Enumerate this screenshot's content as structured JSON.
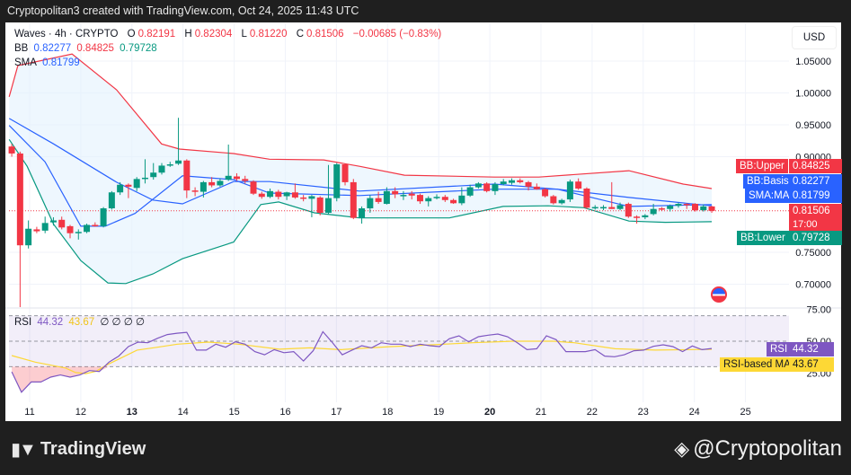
{
  "header": {
    "attribution": "Cryptopolitan3 created with TradingView.com, Oct 24, 2025 11:43 UTC"
  },
  "legend": {
    "symbol": "Waves · 4h · CRYPTO",
    "o_label": "O",
    "o": "0.82191",
    "h_label": "H",
    "h": "0.82304",
    "l_label": "L",
    "l": "0.81220",
    "c_label": "C",
    "c": "0.81506",
    "change": "−0.00685 (−0.83%)",
    "bb_label": "BB",
    "bb_basis": "0.82277",
    "bb_upper": "0.84825",
    "bb_lower": "0.79728",
    "sma_label": "SMA",
    "sma": "0.81799",
    "rsi_label": "RSI",
    "rsi": "44.32",
    "rsi_ma": "43.67",
    "rsi_extra": "∅ ∅ ∅ ∅"
  },
  "currency_button": "USD",
  "price_tags": {
    "upper_label": "BB:Upper",
    "upper": "0.84825",
    "basis_label": "BB:Basis",
    "basis": "0.82277",
    "sma_label": "SMA:MA",
    "sma": "0.81799",
    "last": "0.81506",
    "countdown": "17:00",
    "lower_label": "BB:Lower",
    "lower": "0.79728",
    "rsi_label": "RSI",
    "rsi": "44.32",
    "rsi_ma_label": "RSI-based MA",
    "rsi_ma": "43.67"
  },
  "footer": {
    "brand": "TradingView",
    "watermark": "@Cryptopolitan"
  },
  "colors": {
    "up": "#089981",
    "down": "#f23645",
    "basis": "#2962ff",
    "upper": "#f23645",
    "lower": "#089981",
    "rsi": "#7e57c2",
    "rsi_ma": "#fdd835",
    "band_fill": "#e3f2fd"
  },
  "chart_data": [
    {
      "type": "candlestick",
      "title": "Waves · 4h · CRYPTO",
      "ylabel": "USD",
      "ylim": [
        0.68,
        1.07
      ],
      "y_ticks": [
        "1.05000",
        "1.00000",
        "0.95000",
        "0.90000",
        "0.75000",
        "0.70000"
      ],
      "x_ticks": [
        "11",
        "12",
        "13",
        "14",
        "15",
        "16",
        "17",
        "18",
        "19",
        "20",
        "21",
        "22",
        "23",
        "24",
        "25"
      ],
      "x_range_days_oct": [
        10.5,
        25.8
      ],
      "grid": true,
      "candles_ohlc": [
        [
          0.916,
          0.92,
          0.9,
          0.905
        ],
        [
          0.905,
          0.908,
          0.664,
          0.761
        ],
        [
          0.761,
          0.8,
          0.756,
          0.787
        ],
        [
          0.786,
          0.79,
          0.78,
          0.783
        ],
        [
          0.784,
          0.806,
          0.78,
          0.796
        ],
        [
          0.797,
          0.805,
          0.792,
          0.8
        ],
        [
          0.801,
          0.806,
          0.786,
          0.789
        ],
        [
          0.791,
          0.793,
          0.772,
          0.78
        ],
        [
          0.78,
          0.786,
          0.77,
          0.782
        ],
        [
          0.782,
          0.795,
          0.78,
          0.793
        ],
        [
          0.793,
          0.797,
          0.79,
          0.792
        ],
        [
          0.791,
          0.821,
          0.789,
          0.819
        ],
        [
          0.819,
          0.846,
          0.817,
          0.844
        ],
        [
          0.844,
          0.86,
          0.84,
          0.856
        ],
        [
          0.856,
          0.858,
          0.835,
          0.853
        ],
        [
          0.851,
          0.868,
          0.846,
          0.865
        ],
        [
          0.866,
          0.896,
          0.858,
          0.867
        ],
        [
          0.868,
          0.89,
          0.864,
          0.875
        ],
        [
          0.875,
          0.89,
          0.872,
          0.886
        ],
        [
          0.887,
          0.892,
          0.884,
          0.888
        ],
        [
          0.889,
          0.961,
          0.887,
          0.894
        ],
        [
          0.894,
          0.896,
          0.835,
          0.847
        ],
        [
          0.847,
          0.852,
          0.838,
          0.845
        ],
        [
          0.845,
          0.862,
          0.836,
          0.86
        ],
        [
          0.86,
          0.868,
          0.852,
          0.855
        ],
        [
          0.855,
          0.866,
          0.853,
          0.862
        ],
        [
          0.864,
          0.919,
          0.862,
          0.87
        ],
        [
          0.869,
          0.874,
          0.862,
          0.865
        ],
        [
          0.865,
          0.87,
          0.858,
          0.862
        ],
        [
          0.861,
          0.863,
          0.84,
          0.842
        ],
        [
          0.842,
          0.845,
          0.834,
          0.837
        ],
        [
          0.837,
          0.85,
          0.835,
          0.846
        ],
        [
          0.845,
          0.848,
          0.833,
          0.837
        ],
        [
          0.838,
          0.845,
          0.832,
          0.844
        ],
        [
          0.844,
          0.858,
          0.834,
          0.836
        ],
        [
          0.836,
          0.84,
          0.83,
          0.835
        ],
        [
          0.834,
          0.84,
          0.805,
          0.838
        ],
        [
          0.836,
          0.838,
          0.808,
          0.812
        ],
        [
          0.812,
          0.887,
          0.81,
          0.835
        ],
        [
          0.835,
          0.89,
          0.83,
          0.888
        ],
        [
          0.888,
          0.889,
          0.855,
          0.86
        ],
        [
          0.86,
          0.865,
          0.802,
          0.804
        ],
        [
          0.804,
          0.822,
          0.795,
          0.819
        ],
        [
          0.819,
          0.84,
          0.812,
          0.835
        ],
        [
          0.835,
          0.845,
          0.826,
          0.829
        ],
        [
          0.826,
          0.852,
          0.825,
          0.846
        ],
        [
          0.846,
          0.852,
          0.835,
          0.841
        ],
        [
          0.839,
          0.846,
          0.832,
          0.84
        ],
        [
          0.842,
          0.846,
          0.833,
          0.839
        ],
        [
          0.84,
          0.842,
          0.826,
          0.83
        ],
        [
          0.83,
          0.838,
          0.822,
          0.835
        ],
        [
          0.836,
          0.841,
          0.833,
          0.837
        ],
        [
          0.837,
          0.84,
          0.829,
          0.832
        ],
        [
          0.832,
          0.834,
          0.826,
          0.827
        ],
        [
          0.827,
          0.852,
          0.824,
          0.839
        ],
        [
          0.839,
          0.856,
          0.837,
          0.852
        ],
        [
          0.852,
          0.86,
          0.85,
          0.858
        ],
        [
          0.858,
          0.86,
          0.844,
          0.846
        ],
        [
          0.846,
          0.86,
          0.84,
          0.857
        ],
        [
          0.857,
          0.865,
          0.855,
          0.861
        ],
        [
          0.859,
          0.866,
          0.856,
          0.863
        ],
        [
          0.863,
          0.866,
          0.858,
          0.86
        ],
        [
          0.86,
          0.862,
          0.847,
          0.853
        ],
        [
          0.853,
          0.858,
          0.848,
          0.849
        ],
        [
          0.849,
          0.851,
          0.836,
          0.838
        ],
        [
          0.838,
          0.84,
          0.825,
          0.827
        ],
        [
          0.827,
          0.834,
          0.825,
          0.832
        ],
        [
          0.833,
          0.864,
          0.829,
          0.861
        ],
        [
          0.861,
          0.866,
          0.848,
          0.85
        ],
        [
          0.85,
          0.852,
          0.818,
          0.82
        ],
        [
          0.82,
          0.824,
          0.817,
          0.821
        ],
        [
          0.82,
          0.824,
          0.816,
          0.821
        ],
        [
          0.821,
          0.86,
          0.818,
          0.818
        ],
        [
          0.818,
          0.828,
          0.816,
          0.824
        ],
        [
          0.826,
          0.828,
          0.804,
          0.806
        ],
        [
          0.806,
          0.808,
          0.795,
          0.805
        ],
        [
          0.805,
          0.81,
          0.802,
          0.808
        ],
        [
          0.81,
          0.826,
          0.808,
          0.818
        ],
        [
          0.819,
          0.821,
          0.815,
          0.818
        ],
        [
          0.818,
          0.825,
          0.814,
          0.823
        ],
        [
          0.823,
          0.828,
          0.82,
          0.826
        ],
        [
          0.826,
          0.827,
          0.818,
          0.825
        ],
        [
          0.826,
          0.827,
          0.814,
          0.816
        ],
        [
          0.816,
          0.825,
          0.814,
          0.822
        ],
        [
          0.822,
          0.823,
          0.812,
          0.815
        ]
      ],
      "series": [
        {
          "name": "BB:Upper",
          "points": [
            [
              10.6,
              0.994
            ],
            [
              10.77,
              1.043
            ],
            [
              11.83,
              1.061
            ],
            [
              12.7,
              1.005
            ],
            [
              13.58,
              0.92
            ],
            [
              13.93,
              0.912
            ],
            [
              14.99,
              0.905
            ],
            [
              15.69,
              0.896
            ],
            [
              16.75,
              0.895
            ],
            [
              17.45,
              0.885
            ],
            [
              18.33,
              0.871
            ],
            [
              20.09,
              0.868
            ],
            [
              20.96,
              0.868
            ],
            [
              22.72,
              0.878
            ],
            [
              23.78,
              0.857
            ],
            [
              24.34,
              0.85
            ]
          ]
        },
        {
          "name": "BB:Basis",
          "points": [
            [
              10.6,
              0.96
            ],
            [
              11.47,
              0.92
            ],
            [
              12.7,
              0.86
            ],
            [
              13.41,
              0.832
            ],
            [
              13.99,
              0.826
            ],
            [
              14.99,
              0.861
            ],
            [
              15.69,
              0.861
            ],
            [
              17.45,
              0.846
            ],
            [
              20.09,
              0.857
            ],
            [
              21.32,
              0.849
            ],
            [
              22.72,
              0.836
            ],
            [
              24.34,
              0.823
            ]
          ]
        },
        {
          "name": "SMA:MA",
          "points": [
            [
              10.6,
              0.949
            ],
            [
              11.3,
              0.892
            ],
            [
              12.0,
              0.791
            ],
            [
              12.48,
              0.791
            ],
            [
              13.06,
              0.811
            ],
            [
              13.99,
              0.87
            ],
            [
              14.99,
              0.864
            ],
            [
              15.69,
              0.843
            ],
            [
              17.45,
              0.839
            ],
            [
              20.09,
              0.849
            ],
            [
              21.32,
              0.849
            ],
            [
              22.72,
              0.822
            ],
            [
              24.34,
              0.825
            ]
          ]
        },
        {
          "name": "BB:Lower",
          "points": [
            [
              10.6,
              0.927
            ],
            [
              10.95,
              0.885
            ],
            [
              11.47,
              0.794
            ],
            [
              12.0,
              0.737
            ],
            [
              12.53,
              0.702
            ],
            [
              12.88,
              0.701
            ],
            [
              13.41,
              0.716
            ],
            [
              13.99,
              0.74
            ],
            [
              14.99,
              0.766
            ],
            [
              15.52,
              0.825
            ],
            [
              15.87,
              0.829
            ],
            [
              16.57,
              0.812
            ],
            [
              17.45,
              0.804
            ],
            [
              19.21,
              0.804
            ],
            [
              20.26,
              0.822
            ],
            [
              21.14,
              0.823
            ],
            [
              21.84,
              0.82
            ],
            [
              22.72,
              0.799
            ],
            [
              23.43,
              0.797
            ],
            [
              24.34,
              0.798
            ]
          ]
        }
      ],
      "last_price": 0.81506
    },
    {
      "type": "line",
      "title": "RSI",
      "ylim": [
        15,
        80
      ],
      "y_ticks": [
        "75.00",
        "50.00",
        "25.00"
      ],
      "bands": [
        70,
        50,
        30
      ],
      "series": [
        {
          "name": "RSI",
          "values": [
            26,
            10,
            18,
            18,
            21.8,
            23.5,
            21.8,
            23.5,
            27,
            26.3,
            33.6,
            38.3,
            45.8,
            49.3,
            48.8,
            52.3,
            55.2,
            56.3,
            57,
            43,
            43,
            47.7,
            45.3,
            49.5,
            47.7,
            41.8,
            39.4,
            43.4,
            41,
            41.8,
            34.5,
            42.5,
            57.5,
            48.8,
            39.4,
            43,
            46.5,
            44.8,
            48.8,
            47.7,
            47.7,
            45.8,
            47.7,
            46.5,
            45.8,
            51.9,
            54.2,
            49.5,
            53.5,
            54.7,
            55.6,
            53.5,
            48.8,
            43.4,
            44.1,
            54.2,
            51.2,
            41.8,
            41.8,
            41.8,
            43.4,
            38.3,
            37.8,
            39.4,
            42.5,
            43,
            46,
            47.2,
            45.8,
            41.8,
            46.3,
            43.4,
            44.32
          ]
        },
        {
          "name": "RSI-based MA",
          "points": [
            [
              10.65,
              38.7
            ],
            [
              11.11,
              33.6
            ],
            [
              11.7,
              29
            ],
            [
              11.9,
              25.4
            ],
            [
              12.1,
              24.6
            ],
            [
              12.3,
              26.5
            ],
            [
              12.5,
              31.2
            ],
            [
              13.1,
              43
            ],
            [
              13.5,
              45.3
            ],
            [
              13.89,
              47.7
            ],
            [
              14.49,
              49.3
            ],
            [
              15.09,
              47.7
            ],
            [
              15.88,
              43.7
            ],
            [
              16.48,
              44.8
            ],
            [
              17.08,
              43.4
            ],
            [
              18.07,
              45.8
            ],
            [
              18.87,
              47.2
            ],
            [
              19.66,
              48.8
            ],
            [
              20.46,
              50
            ],
            [
              21.25,
              50
            ],
            [
              21.65,
              48.8
            ],
            [
              22.45,
              44.1
            ],
            [
              23.24,
              43
            ],
            [
              24.34,
              43.67
            ]
          ]
        }
      ]
    }
  ]
}
